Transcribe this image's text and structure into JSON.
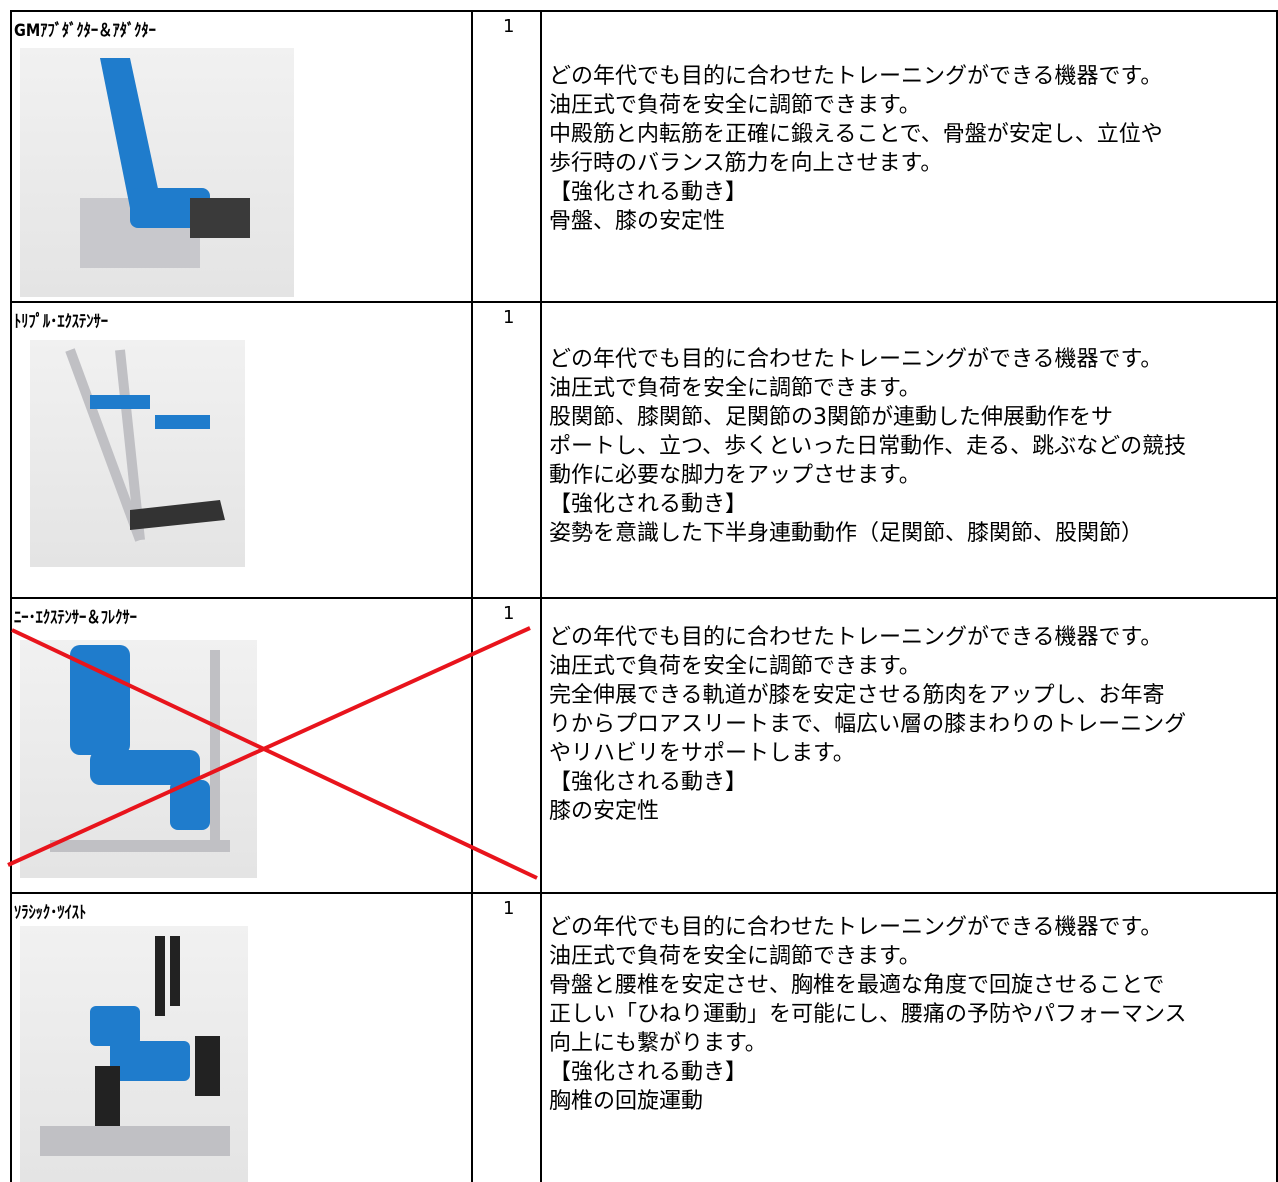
{
  "table": {
    "rows": [
      {
        "name": "GMｱﾌﾞﾀﾞｸﾀｰ＆ｱﾀﾞｸﾀｰ",
        "quantity": "1",
        "description": [
          "どの年代でも目的に合わせたトレーニングができる機器です。",
          "油圧式で負荷を安全に調節できます。",
          "中殿筋と内転筋を正確に鍛えることで、骨盤が安定し、立位や",
          "歩行時のバランス筋力を向上させます。",
          "【強化される動き】",
          "骨盤、膝の安定性"
        ]
      },
      {
        "name": "ﾄﾘﾌﾟﾙ･ｴｸｽﾃﾝｻｰ",
        "quantity": "1",
        "description": [
          "どの年代でも目的に合わせたトレーニングができる機器です。",
          "油圧式で負荷を安全に調節できます。",
          "股関節、膝関節、足関節の3関節が連動した伸展動作をサ",
          "ポートし、立つ、歩くといった日常動作、走る、跳ぶなどの競技",
          "動作に必要な脚力をアップさせます。",
          "【強化される動き】",
          "姿勢を意識した下半身連動動作（足関節、膝関節、股関節）"
        ]
      },
      {
        "name": "ﾆｰ･ｴｸｽﾃﾝｻｰ＆ﾌﾚｸｻｰ",
        "quantity": "1",
        "description": [
          "どの年代でも目的に合わせたトレーニングができる機器です。",
          "油圧式で負荷を安全に調節できます。",
          "完全伸展できる軌道が膝を安定させる筋肉をアップし、お年寄",
          "りからプロアスリートまで、幅広い層の膝まわりのトレーニング",
          "やリハビリをサポートします。",
          "【強化される動き】",
          "膝の安定性"
        ]
      },
      {
        "name": "ｿﾗｼｯｸ･ﾂｲｽﾄ",
        "quantity": "1",
        "description": [
          "どの年代でも目的に合わせたトレーニングができる機器です。",
          "油圧式で負荷を安全に調節できます。",
          "骨盤と腰椎を安定させ、胸椎を最適な角度で回旋させることで",
          "正しい「ひねり運動」を可能にし、腰痛の予防やパフォーマンス",
          "向上にも繋がります。",
          "【強化される動き】",
          "胸椎の回旋運動"
        ]
      }
    ]
  }
}
